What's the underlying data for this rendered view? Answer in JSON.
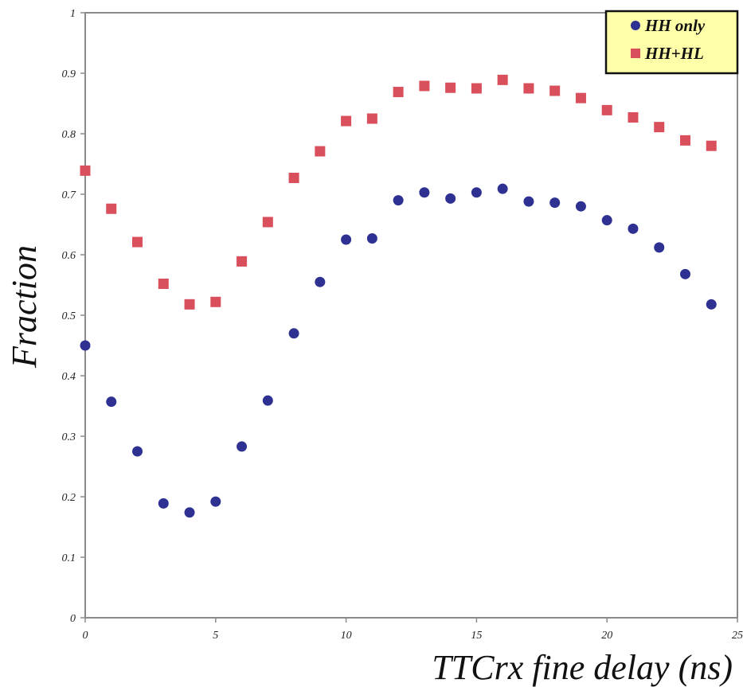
{
  "chart_data": {
    "type": "scatter",
    "title": "",
    "xlabel": "TTCrx fine delay (ns)",
    "ylabel": "Fraction",
    "xlim": [
      0,
      25
    ],
    "ylim": [
      0,
      1
    ],
    "xticks": [
      0,
      5,
      10,
      15,
      20,
      25
    ],
    "yticks": [
      0,
      0.1,
      0.2,
      0.3,
      0.4,
      0.5,
      0.6,
      0.7,
      0.8,
      0.9,
      1
    ],
    "xtick_labels": [
      "0",
      "5",
      "10",
      "15",
      "20",
      "25"
    ],
    "ytick_labels": [
      "0",
      "0.1",
      "0.2",
      "0.3",
      "0.4",
      "0.5",
      "0.6",
      "0.7",
      "0.8",
      "0.9",
      "1"
    ],
    "grid": false,
    "legend_position": "top-right",
    "legend_background": "#FFFFAA",
    "x": [
      0,
      1,
      2,
      3,
      4,
      5,
      6,
      7,
      8,
      9,
      10,
      11,
      12,
      13,
      14,
      15,
      16,
      17,
      18,
      19,
      20,
      21,
      22,
      23,
      24
    ],
    "series": [
      {
        "name": "HH only",
        "marker": "circle",
        "color": "#2E3192",
        "values": [
          0.45,
          0.357,
          0.275,
          0.189,
          0.174,
          0.192,
          0.283,
          0.359,
          0.47,
          0.555,
          0.625,
          0.627,
          0.69,
          0.703,
          0.693,
          0.703,
          0.709,
          0.688,
          0.686,
          0.68,
          0.657,
          0.643,
          0.612,
          0.568,
          0.518
        ]
      },
      {
        "name": "HH+HL",
        "marker": "square",
        "color": "#D94F5C",
        "values": [
          0.739,
          0.676,
          0.621,
          0.552,
          0.518,
          0.522,
          0.589,
          0.654,
          0.727,
          0.771,
          0.821,
          0.825,
          0.869,
          0.879,
          0.876,
          0.875,
          0.889,
          0.875,
          0.871,
          0.859,
          0.839,
          0.827,
          0.811,
          0.789,
          0.78
        ]
      }
    ]
  }
}
